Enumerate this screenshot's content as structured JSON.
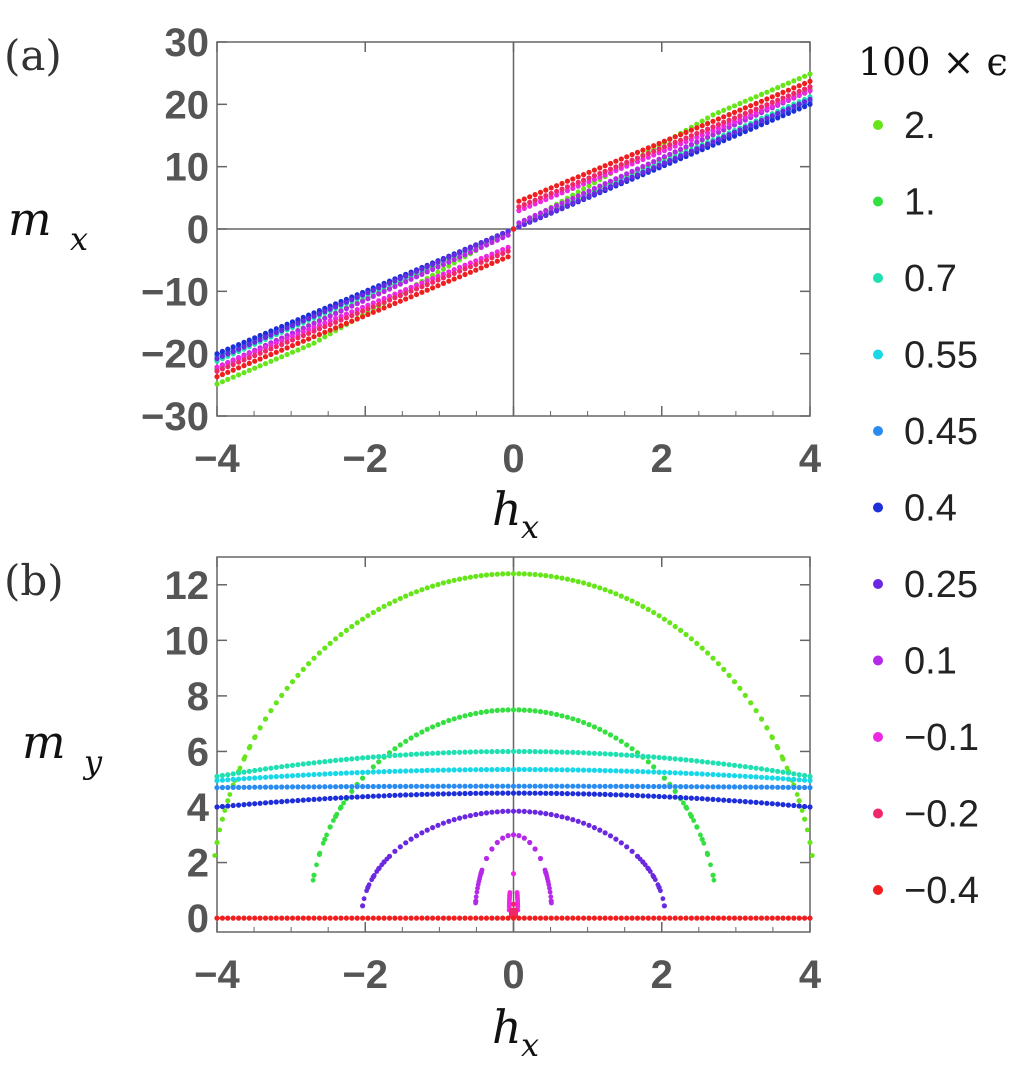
{
  "chart_data": [
    {
      "panel_label": "(a)",
      "type": "scatter",
      "ylabel": {
        "var": "m",
        "sub": "x"
      },
      "xlabel": {
        "var": "h",
        "sub": "x"
      },
      "xlim": [
        -4,
        4
      ],
      "ylim": [
        -30,
        30
      ],
      "x_ticks": [
        "−4",
        "−2",
        "0",
        "2",
        "4"
      ],
      "y_ticks": [
        "30",
        "20",
        "10",
        "0",
        "−10",
        "−20",
        "−30"
      ],
      "x_tick_values": [
        -4,
        -2,
        0,
        2,
        4
      ],
      "y_tick_values": [
        30,
        20,
        10,
        0,
        -10,
        -20,
        -30
      ],
      "series": [
        {
          "name": "2.",
          "color": "#66e61a",
          "kind": "linear_kink",
          "slope": 6.8,
          "offset": 0,
          "kink": 2.7,
          "slope_outer": 5.0
        },
        {
          "name": "1.",
          "color": "#33e040",
          "kind": "linear",
          "slope": 5.6,
          "offset": 0
        },
        {
          "name": "0.7",
          "color": "#1ee0b0",
          "kind": "linear",
          "slope": 5.3,
          "offset": 0
        },
        {
          "name": "0.55",
          "color": "#18d8e8",
          "kind": "linear",
          "slope": 5.2,
          "offset": 0
        },
        {
          "name": "0.45",
          "color": "#2a8cf0",
          "kind": "linear",
          "slope": 5.1,
          "offset": 0
        },
        {
          "name": "0.4",
          "color": "#1e2ed8",
          "kind": "linear",
          "slope": 5.0,
          "offset": 0
        },
        {
          "name": "0.25",
          "color": "#6a28e0",
          "kind": "linear",
          "slope": 5.2,
          "offset": 0
        },
        {
          "name": "0.1",
          "color": "#b428e8",
          "kind": "linear",
          "slope": 5.4,
          "offset": 0.6
        },
        {
          "name": "−0.1",
          "color": "#ee28e0",
          "kind": "linear",
          "slope": 4.9,
          "offset": 2.6
        },
        {
          "name": "−0.2",
          "color": "#f0286a",
          "kind": "linear",
          "slope": 4.9,
          "offset": 3.2
        },
        {
          "name": "−0.4",
          "color": "#f01e1e",
          "kind": "linear",
          "slope": 4.9,
          "offset": 4.1
        }
      ]
    },
    {
      "panel_label": "(b)",
      "type": "scatter",
      "ylabel": {
        "var": "m",
        "sub": "y"
      },
      "xlabel": {
        "var": "h",
        "sub": "x"
      },
      "xlim": [
        -4,
        4
      ],
      "ylim": [
        -0.5,
        13
      ],
      "x_ticks": [
        "−4",
        "−2",
        "0",
        "2",
        "4"
      ],
      "y_ticks": [
        "12",
        "10",
        "8",
        "6",
        "4",
        "2",
        "0"
      ],
      "x_tick_values": [
        -4,
        -2,
        0,
        2,
        4
      ],
      "y_tick_values": [
        12,
        10,
        8,
        6,
        4,
        2,
        0
      ],
      "series": [
        {
          "name": "2.",
          "color": "#66e61a",
          "kind": "dome",
          "peak": 12.4,
          "h0": 4.1
        },
        {
          "name": "1.",
          "color": "#33e040",
          "kind": "dome",
          "peak": 7.5,
          "h0": 2.75
        },
        {
          "name": "0.7",
          "color": "#1ee0b0",
          "kind": "flat",
          "center": 6.0,
          "edge": 5.1
        },
        {
          "name": "0.55",
          "color": "#18d8e8",
          "kind": "flat",
          "center": 5.35,
          "edge": 4.95
        },
        {
          "name": "0.45",
          "color": "#2a8cf0",
          "kind": "flat",
          "center": 4.75,
          "edge": 4.7
        },
        {
          "name": "0.4",
          "color": "#1e2ed8",
          "kind": "flat",
          "center": 4.5,
          "edge": 4.0
        },
        {
          "name": "0.25",
          "color": "#6a28e0",
          "kind": "dome",
          "peak": 3.85,
          "h0": 2.05
        },
        {
          "name": "0.1",
          "color": "#b428e8",
          "kind": "dome",
          "peak": 3.0,
          "h0": 0.52
        },
        {
          "name": "−0.1",
          "color": "#ee28e0",
          "kind": "dome",
          "peak": 1.6,
          "h0": 0.06
        },
        {
          "name": "−0.2",
          "color": "#f0286a",
          "kind": "dome",
          "peak": 0.5,
          "h0": 0.03
        },
        {
          "name": "−0.4",
          "color": "#f01e1e",
          "kind": "flat",
          "center": 0.0,
          "edge": 0.0
        }
      ]
    }
  ],
  "legend": {
    "title": "100 × ϵ",
    "entries": [
      {
        "label": "2.",
        "color": "#66e61a"
      },
      {
        "label": "1.",
        "color": "#33e040"
      },
      {
        "label": "0.7",
        "color": "#1ee0b0"
      },
      {
        "label": "0.55",
        "color": "#18d8e8"
      },
      {
        "label": "0.45",
        "color": "#2a8cf0"
      },
      {
        "label": "0.4",
        "color": "#1e2ed8"
      },
      {
        "label": "0.25",
        "color": "#6a28e0"
      },
      {
        "label": "0.1",
        "color": "#b428e8"
      },
      {
        "label": "−0.1",
        "color": "#ee28e0"
      },
      {
        "label": "−0.2",
        "color": "#f0286a"
      },
      {
        "label": "−0.4",
        "color": "#f01e1e"
      }
    ]
  }
}
